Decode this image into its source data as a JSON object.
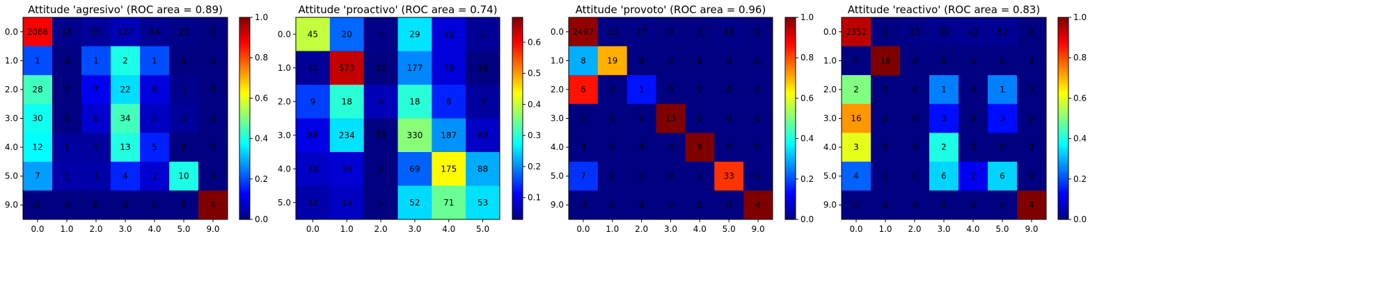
{
  "chart_data": [
    {
      "type": "heatmap",
      "title": "Attitude 'agresivo' (ROC area = 0.89)",
      "row_labels": [
        "0.0",
        "1.0",
        "2.0",
        "3.0",
        "4.0",
        "5.0",
        "9.0"
      ],
      "col_labels": [
        "0.0",
        "1.0",
        "2.0",
        "3.0",
        "4.0",
        "5.0",
        "9.0"
      ],
      "values": [
        [
          2086,
          28,
          65,
          127,
          44,
          23,
          0
        ],
        [
          1,
          0,
          1,
          2,
          1,
          0,
          0
        ],
        [
          28,
          0,
          7,
          22,
          6,
          1,
          0
        ],
        [
          30,
          0,
          6,
          34,
          5,
          2,
          0
        ],
        [
          12,
          1,
          1,
          13,
          5,
          0,
          0
        ],
        [
          7,
          1,
          1,
          4,
          2,
          10,
          0
        ],
        [
          0,
          0,
          0,
          0,
          0,
          0,
          4
        ]
      ],
      "colorbar": {
        "min": 0.0,
        "max": 1.0,
        "ticks": [
          "0.0",
          "0.2",
          "0.4",
          "0.6",
          "0.8",
          "1.0"
        ]
      },
      "colormap": "jet"
    },
    {
      "type": "heatmap",
      "title": "Attitude 'proactivo' (ROC area = 0.74)",
      "row_labels": [
        "0.0",
        "1.0",
        "2.0",
        "3.0",
        "4.0",
        "5.0"
      ],
      "col_labels": [
        "0.0",
        "1.0",
        "2.0",
        "3.0",
        "4.0",
        "5.0"
      ],
      "values": [
        [
          45,
          20,
          4,
          29,
          10,
          5
        ],
        [
          41,
          573,
          13,
          177,
          79,
          18
        ],
        [
          9,
          18,
          4,
          18,
          8,
          3
        ],
        [
          86,
          234,
          10,
          330,
          187,
          69
        ],
        [
          30,
          33,
          4,
          69,
          175,
          88
        ],
        [
          12,
          15,
          5,
          52,
          71,
          53
        ]
      ],
      "colorbar": {
        "min": 0.03,
        "max": 0.68,
        "ticks": [
          "0.1",
          "0.2",
          "0.3",
          "0.4",
          "0.5",
          "0.6"
        ]
      },
      "colormap": "jet"
    },
    {
      "type": "heatmap",
      "title": "Attitude 'provoto' (ROC area = 0.96)",
      "row_labels": [
        "0.0",
        "1.0",
        "2.0",
        "3.0",
        "4.0",
        "5.0",
        "9.0"
      ],
      "col_labels": [
        "0.0",
        "1.0",
        "2.0",
        "3.0",
        "4.0",
        "5.0",
        "9.0"
      ],
      "values": [
        [
          2497,
          13,
          17,
          0,
          3,
          18,
          0
        ],
        [
          8,
          19,
          0,
          0,
          0,
          0,
          0
        ],
        [
          6,
          0,
          1,
          0,
          0,
          0,
          0
        ],
        [
          0,
          0,
          0,
          13,
          0,
          0,
          0
        ],
        [
          0,
          0,
          0,
          0,
          9,
          0,
          0
        ],
        [
          7,
          0,
          0,
          0,
          0,
          33,
          0
        ],
        [
          0,
          0,
          0,
          0,
          0,
          0,
          4
        ]
      ],
      "colorbar": {
        "min": 0.0,
        "max": 1.0,
        "ticks": [
          "0.0",
          "0.2",
          "0.4",
          "0.6",
          "0.8",
          "1.0"
        ]
      },
      "colormap": "jet"
    },
    {
      "type": "heatmap",
      "title": "Attitude 'reactivo' (ROC area = 0.83)",
      "row_labels": [
        "0.0",
        "1.0",
        "2.0",
        "3.0",
        "4.0",
        "5.0",
        "9.0"
      ],
      "col_labels": [
        "0.0",
        "1.0",
        "2.0",
        "3.0",
        "4.0",
        "5.0",
        "9.0"
      ],
      "values": [
        [
          2352,
          0,
          23,
          39,
          42,
          53,
          0
        ],
        [
          0,
          18,
          0,
          0,
          0,
          0,
          0
        ],
        [
          2,
          0,
          0,
          1,
          0,
          1,
          0
        ],
        [
          16,
          0,
          0,
          3,
          0,
          3,
          0
        ],
        [
          3,
          0,
          0,
          2,
          0,
          0,
          0
        ],
        [
          4,
          0,
          0,
          6,
          2,
          6,
          0
        ],
        [
          0,
          0,
          0,
          0,
          0,
          0,
          4
        ]
      ],
      "colorbar": {
        "min": 0.0,
        "max": 1.0,
        "ticks": [
          "0.0",
          "0.2",
          "0.4",
          "0.6",
          "0.8",
          "1.0"
        ]
      },
      "colormap": "jet"
    }
  ]
}
